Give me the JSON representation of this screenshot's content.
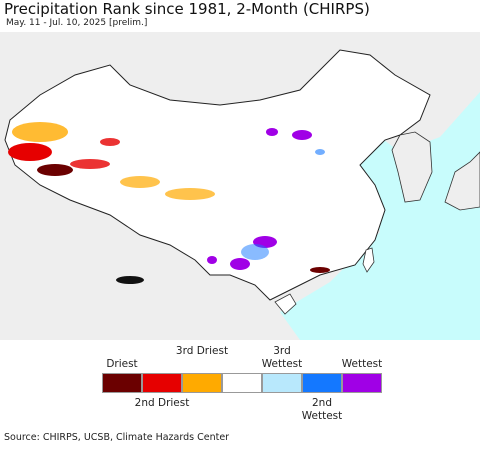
{
  "title": "Precipitation Rank since 1981, 2-Month (CHIRPS)",
  "subtitle": "May. 11 - Jul. 10, 2025 [prelim.]",
  "legend": {
    "items": [
      {
        "color": "#6b0000",
        "label": "Driest"
      },
      {
        "color": "#e60000",
        "label": "2nd Driest"
      },
      {
        "color": "#ffaa00",
        "label": "3rd Driest"
      },
      {
        "color": "#ffffff"
      },
      {
        "color": "#b8e8fc",
        "label": "3rd Wettest"
      },
      {
        "color": "#1478ff",
        "label": "2nd Wettest"
      },
      {
        "color": "#a000e6",
        "label": "Wettest"
      }
    ]
  },
  "source": "Source: CHIRPS, UCSB, Climate Hazards Center"
}
